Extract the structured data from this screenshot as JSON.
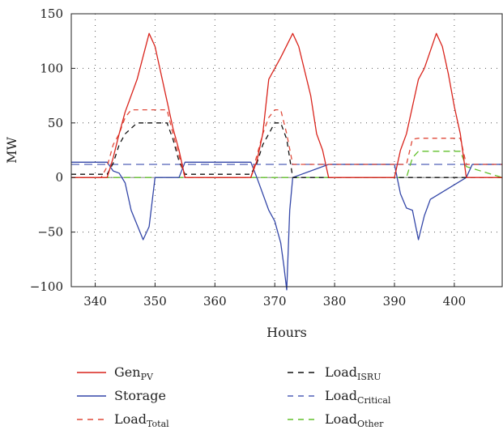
{
  "chart_data": {
    "type": "line",
    "title": "",
    "xlabel": "Hours",
    "ylabel": "MW",
    "xlim": [
      336,
      408
    ],
    "ylim": [
      -100,
      150
    ],
    "xticks": [
      340,
      350,
      360,
      370,
      380,
      390,
      400
    ],
    "yticks": [
      -100,
      -50,
      0,
      50,
      100,
      150
    ],
    "grid": "dotted",
    "legend_position": "bottom",
    "series": [
      {
        "key": "gen_pv",
        "name_base": "Gen",
        "name_sub": "PV",
        "color": "#d9241c",
        "dash": "solid",
        "x": [
          336,
          342,
          343,
          344,
          345,
          347,
          349,
          350,
          352,
          353,
          354,
          355,
          366,
          367,
          368,
          369,
          371,
          373,
          374,
          376,
          377,
          378,
          379,
          390,
          391,
          392,
          393,
          394,
          395,
          397,
          398,
          399,
          400,
          401,
          402,
          408
        ],
        "y": [
          0,
          0,
          18,
          40,
          60,
          90,
          132,
          120,
          70,
          45,
          25,
          0,
          0,
          15,
          40,
          90,
          110,
          132,
          120,
          75,
          40,
          25,
          0,
          0,
          25,
          40,
          65,
          90,
          100,
          132,
          120,
          95,
          65,
          40,
          0,
          0
        ]
      },
      {
        "key": "storage",
        "name_base": "Storage",
        "name_sub": "",
        "color": "#3447a8",
        "dash": "solid",
        "x": [
          336,
          342,
          343,
          344,
          345,
          346,
          348,
          349,
          350,
          354,
          355,
          366,
          367,
          369,
          370,
          371,
          371.5,
          372,
          372.5,
          373,
          379,
          390,
          391,
          392,
          393,
          394,
          395,
          396,
          402,
          403,
          408
        ],
        "y": [
          14,
          14,
          6,
          4,
          -5,
          -30,
          -57,
          -45,
          0,
          0,
          14,
          14,
          0,
          -30,
          -40,
          -60,
          -80,
          -103,
          -30,
          0,
          12,
          12,
          -15,
          -28,
          -30,
          -57,
          -35,
          -20,
          0,
          12,
          12
        ]
      },
      {
        "key": "load_total",
        "name_base": "Load",
        "name_sub": "Total",
        "color": "#e04a3a",
        "dash": "6,5",
        "x": [
          336,
          341,
          342,
          343,
          344,
          345,
          346,
          352,
          353,
          354,
          355,
          366,
          367,
          368,
          369,
          370,
          371,
          372,
          373,
          377,
          392,
          393,
          394,
          401,
          402,
          408
        ],
        "y": [
          0,
          0,
          10,
          30,
          40,
          55,
          62,
          62,
          40,
          20,
          0,
          0,
          20,
          40,
          55,
          62,
          62,
          40,
          12,
          12,
          12,
          35,
          36,
          36,
          12,
          12
        ]
      },
      {
        "key": "load_isru",
        "name_base": "Load",
        "name_sub": "ISRU",
        "color": "#111111",
        "dash": "6,5",
        "x": [
          336,
          342,
          343,
          344,
          345,
          346,
          347,
          352,
          353,
          354,
          355,
          366,
          367,
          368,
          369,
          370,
          371,
          372,
          373,
          408
        ],
        "y": [
          3,
          3,
          13,
          30,
          40,
          45,
          50,
          50,
          35,
          15,
          3,
          3,
          13,
          30,
          40,
          50,
          50,
          35,
          0,
          0
        ]
      },
      {
        "key": "load_critical",
        "name_base": "Load",
        "name_sub": "Critical",
        "color": "#5060b8",
        "dash": "10,6",
        "x": [
          336,
          408
        ],
        "y": [
          12,
          12
        ]
      },
      {
        "key": "load_other",
        "name_base": "Load",
        "name_sub": "Other",
        "color": "#62c02b",
        "dash": "8,5",
        "x": [
          336,
          392,
          393,
          394,
          401,
          402,
          408
        ],
        "y": [
          0,
          0,
          18,
          24,
          24,
          10,
          0
        ]
      }
    ]
  }
}
